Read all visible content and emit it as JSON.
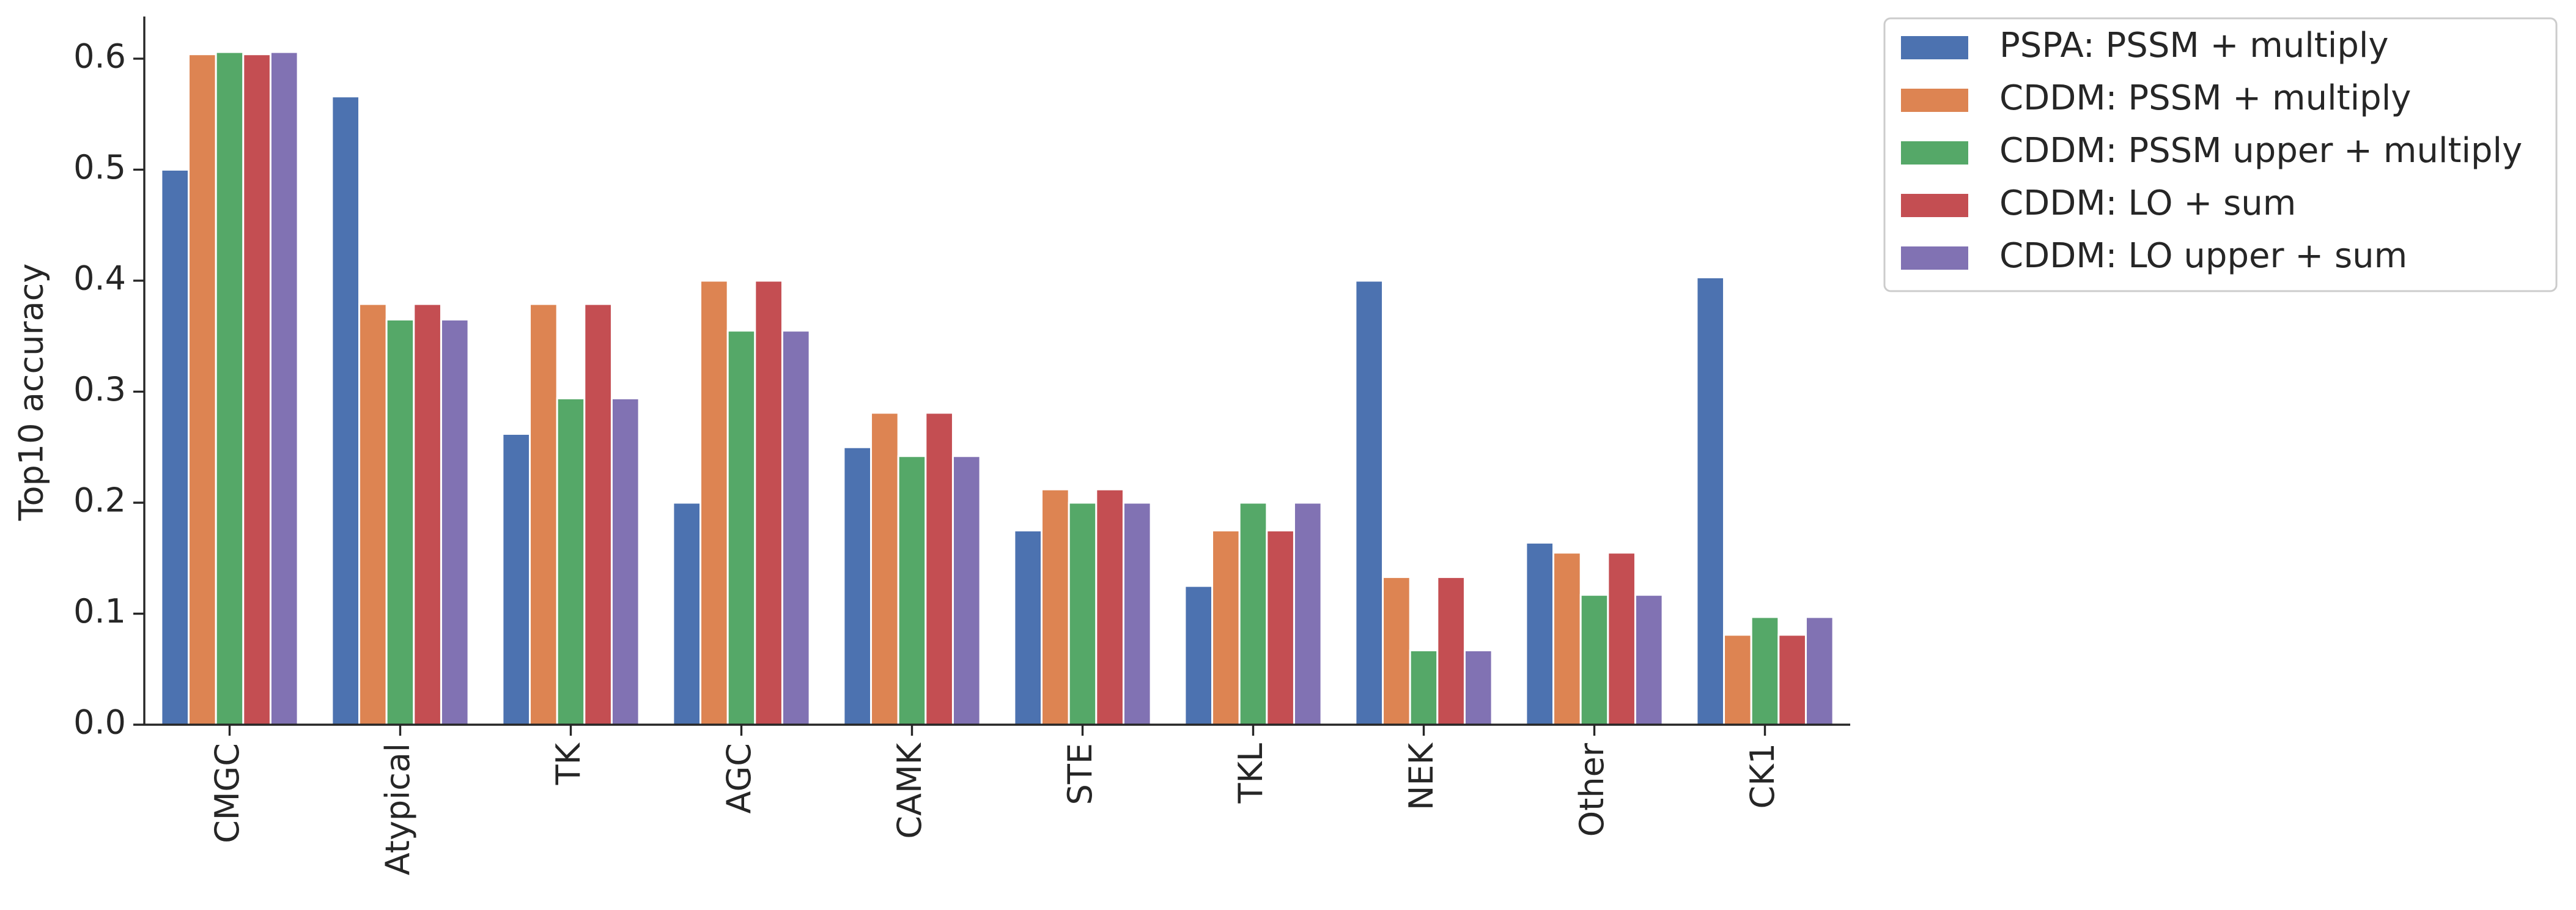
{
  "chart_data": {
    "type": "bar",
    "ylabel": "Top10 accuracy",
    "categories": [
      "CMGC",
      "Atypical",
      "TK",
      "AGC",
      "CAMK",
      "STE",
      "TKL",
      "NEK",
      "Other",
      "CK1"
    ],
    "series": [
      {
        "name": "PSPA: PSSM + multiply",
        "color": "#4c72b0",
        "values": [
          0.5,
          0.566,
          0.262,
          0.2,
          0.25,
          0.175,
          0.125,
          0.4,
          0.164,
          0.403
        ]
      },
      {
        "name": "CDDM: PSSM + multiply",
        "color": "#dd8452",
        "values": [
          0.604,
          0.379,
          0.379,
          0.4,
          0.281,
          0.212,
          0.175,
          0.133,
          0.155,
          0.081
        ]
      },
      {
        "name": "CDDM: PSSM upper + multiply",
        "color": "#55a868",
        "values": [
          0.606,
          0.365,
          0.294,
          0.355,
          0.242,
          0.2,
          0.2,
          0.067,
          0.117,
          0.097
        ]
      },
      {
        "name": "CDDM: LO + sum",
        "color": "#c44e52",
        "values": [
          0.604,
          0.379,
          0.379,
          0.4,
          0.281,
          0.212,
          0.175,
          0.133,
          0.155,
          0.081
        ]
      },
      {
        "name": "CDDM: LO upper + sum",
        "color": "#8172b3",
        "values": [
          0.606,
          0.365,
          0.294,
          0.355,
          0.242,
          0.2,
          0.2,
          0.067,
          0.117,
          0.097
        ]
      }
    ],
    "ylim": [
      0,
      0.638
    ],
    "yticks": [
      {
        "value": 0,
        "label": "0.0"
      },
      0.1,
      0.2,
      0.3,
      0.4,
      0.5,
      0.6
    ],
    "grid": false,
    "legend": "outside upper right"
  }
}
